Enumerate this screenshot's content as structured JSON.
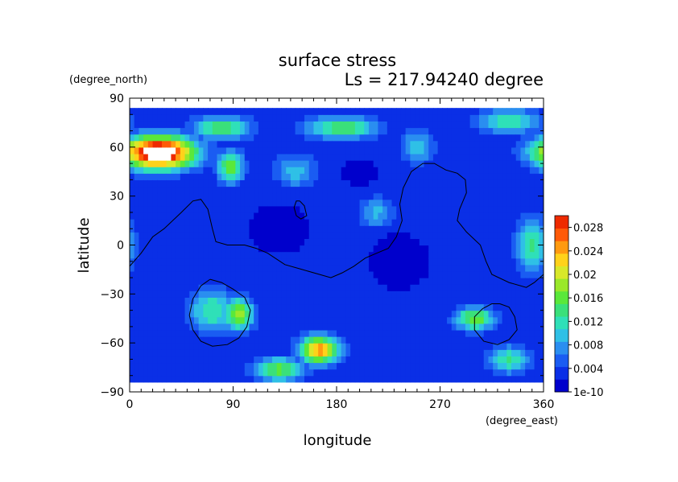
{
  "chart_data": {
    "type": "heatmap",
    "title": "surface stress",
    "subtitle": "Ls = 217.94240 degree",
    "xlabel": "longitude",
    "ylabel": "latitude",
    "x_unit": "(degree_east)",
    "y_unit": "(degree_north)",
    "xlim": [
      0,
      360
    ],
    "ylim": [
      -90,
      90
    ],
    "x_ticks": [
      "0",
      "90",
      "180",
      "270",
      "360"
    ],
    "y_ticks": [
      "90",
      "60",
      "30",
      "0",
      "−30",
      "−60",
      "−90"
    ],
    "x_tick_values": [
      0,
      90,
      180,
      270,
      360
    ],
    "y_tick_values": [
      90,
      60,
      30,
      0,
      -30,
      -60,
      -90
    ],
    "colorbar": {
      "labels": [
        "0.028",
        "0.024",
        "0.02",
        "0.016",
        "0.012",
        "0.008",
        "0.004",
        "1e-10"
      ],
      "values": [
        0.028,
        0.024,
        0.02,
        0.016,
        0.012,
        0.008,
        0.004,
        0
      ],
      "max": 0.03,
      "colors": [
        "#0000cc",
        "#0a2fe6",
        "#1a5cf2",
        "#2a8ef0",
        "#2fc0e6",
        "#2fe0b8",
        "#3ae07a",
        "#5ae83a",
        "#9ae82a",
        "#d8e82a",
        "#ffd21a",
        "#ff9a10",
        "#ff5a08",
        "#ee2a00"
      ]
    },
    "background_value": 0.0042,
    "data_extent_lat": [
      -84,
      84
    ],
    "field_hotspots": [
      {
        "lon": 25,
        "lat": 57,
        "value": 0.034,
        "sx": 22,
        "sy": 7
      },
      {
        "lon": 80,
        "lat": 72,
        "value": 0.013,
        "sx": 18,
        "sy": 5
      },
      {
        "lon": 185,
        "lat": 72,
        "value": 0.013,
        "sx": 22,
        "sy": 5
      },
      {
        "lon": 330,
        "lat": 76,
        "value": 0.011,
        "sx": 20,
        "sy": 5
      },
      {
        "lon": 88,
        "lat": 48,
        "value": 0.015,
        "sx": 8,
        "sy": 7
      },
      {
        "lon": 95,
        "lat": -42,
        "value": 0.017,
        "sx": 9,
        "sy": 7
      },
      {
        "lon": 72,
        "lat": -40,
        "value": 0.011,
        "sx": 14,
        "sy": 9
      },
      {
        "lon": 165,
        "lat": -64,
        "value": 0.023,
        "sx": 12,
        "sy": 6
      },
      {
        "lon": 130,
        "lat": -76,
        "value": 0.014,
        "sx": 15,
        "sy": 5
      },
      {
        "lon": 300,
        "lat": -45,
        "value": 0.015,
        "sx": 12,
        "sy": 5
      },
      {
        "lon": 330,
        "lat": -70,
        "value": 0.011,
        "sx": 12,
        "sy": 6
      },
      {
        "lon": 350,
        "lat": 0,
        "value": 0.011,
        "sx": 10,
        "sy": 12
      },
      {
        "lon": 215,
        "lat": 20,
        "value": 0.008,
        "sx": 12,
        "sy": 8
      },
      {
        "lon": 145,
        "lat": 45,
        "value": 0.008,
        "sx": 14,
        "sy": 8
      },
      {
        "lon": 250,
        "lat": 60,
        "value": 0.009,
        "sx": 10,
        "sy": 7
      }
    ],
    "field_lows": [
      {
        "lon": 130,
        "lat": 10,
        "value": 0.0012,
        "sx": 30,
        "sy": 18
      },
      {
        "lon": 235,
        "lat": -10,
        "value": 0.0012,
        "sx": 30,
        "sy": 20
      },
      {
        "lon": 200,
        "lat": 45,
        "value": 0.0018,
        "sx": 25,
        "sy": 12
      }
    ],
    "contours": [
      {
        "name": "dichotomy",
        "points": [
          [
            0,
            -13
          ],
          [
            10,
            -5
          ],
          [
            20,
            5
          ],
          [
            30,
            10
          ],
          [
            45,
            20
          ],
          [
            55,
            27
          ],
          [
            62,
            28
          ],
          [
            68,
            22
          ],
          [
            72,
            10
          ],
          [
            75,
            2
          ],
          [
            85,
            0
          ],
          [
            100,
            0
          ],
          [
            110,
            -2
          ],
          [
            120,
            -5
          ],
          [
            135,
            -12
          ],
          [
            150,
            -15
          ],
          [
            165,
            -18
          ],
          [
            175,
            -20
          ],
          [
            185,
            -17
          ],
          [
            195,
            -13
          ],
          [
            205,
            -8
          ],
          [
            215,
            -5
          ],
          [
            225,
            -2
          ],
          [
            232,
            5
          ],
          [
            237,
            15
          ],
          [
            235,
            25
          ],
          [
            238,
            35
          ],
          [
            245,
            45
          ],
          [
            255,
            50
          ],
          [
            265,
            50
          ],
          [
            275,
            46
          ],
          [
            285,
            44
          ],
          [
            292,
            40
          ],
          [
            293,
            32
          ],
          [
            287,
            22
          ],
          [
            285,
            15
          ],
          [
            293,
            8
          ],
          [
            305,
            0
          ],
          [
            310,
            -10
          ],
          [
            315,
            -18
          ],
          [
            330,
            -23
          ],
          [
            345,
            -26
          ],
          [
            352,
            -23
          ],
          [
            360,
            -18
          ]
        ]
      },
      {
        "name": "hellas",
        "points": [
          [
            70,
            -21
          ],
          [
            80,
            -23
          ],
          [
            90,
            -27
          ],
          [
            100,
            -32
          ],
          [
            105,
            -40
          ],
          [
            102,
            -50
          ],
          [
            95,
            -57
          ],
          [
            85,
            -61
          ],
          [
            72,
            -62
          ],
          [
            62,
            -59
          ],
          [
            55,
            -52
          ],
          [
            52,
            -43
          ],
          [
            55,
            -33
          ],
          [
            62,
            -25
          ],
          [
            70,
            -21
          ]
        ]
      },
      {
        "name": "argyre",
        "points": [
          [
            322,
            -36
          ],
          [
            330,
            -38
          ],
          [
            335,
            -44
          ],
          [
            337,
            -52
          ],
          [
            330,
            -58
          ],
          [
            320,
            -61
          ],
          [
            308,
            -59
          ],
          [
            300,
            -52
          ],
          [
            300,
            -44
          ],
          [
            307,
            -39
          ],
          [
            315,
            -36
          ],
          [
            322,
            -36
          ]
        ]
      },
      {
        "name": "elysium",
        "points": [
          [
            148,
            27
          ],
          [
            152,
            24
          ],
          [
            154,
            18
          ],
          [
            149,
            16
          ],
          [
            145,
            18
          ],
          [
            143,
            23
          ],
          [
            145,
            27
          ],
          [
            148,
            27
          ]
        ]
      }
    ]
  }
}
